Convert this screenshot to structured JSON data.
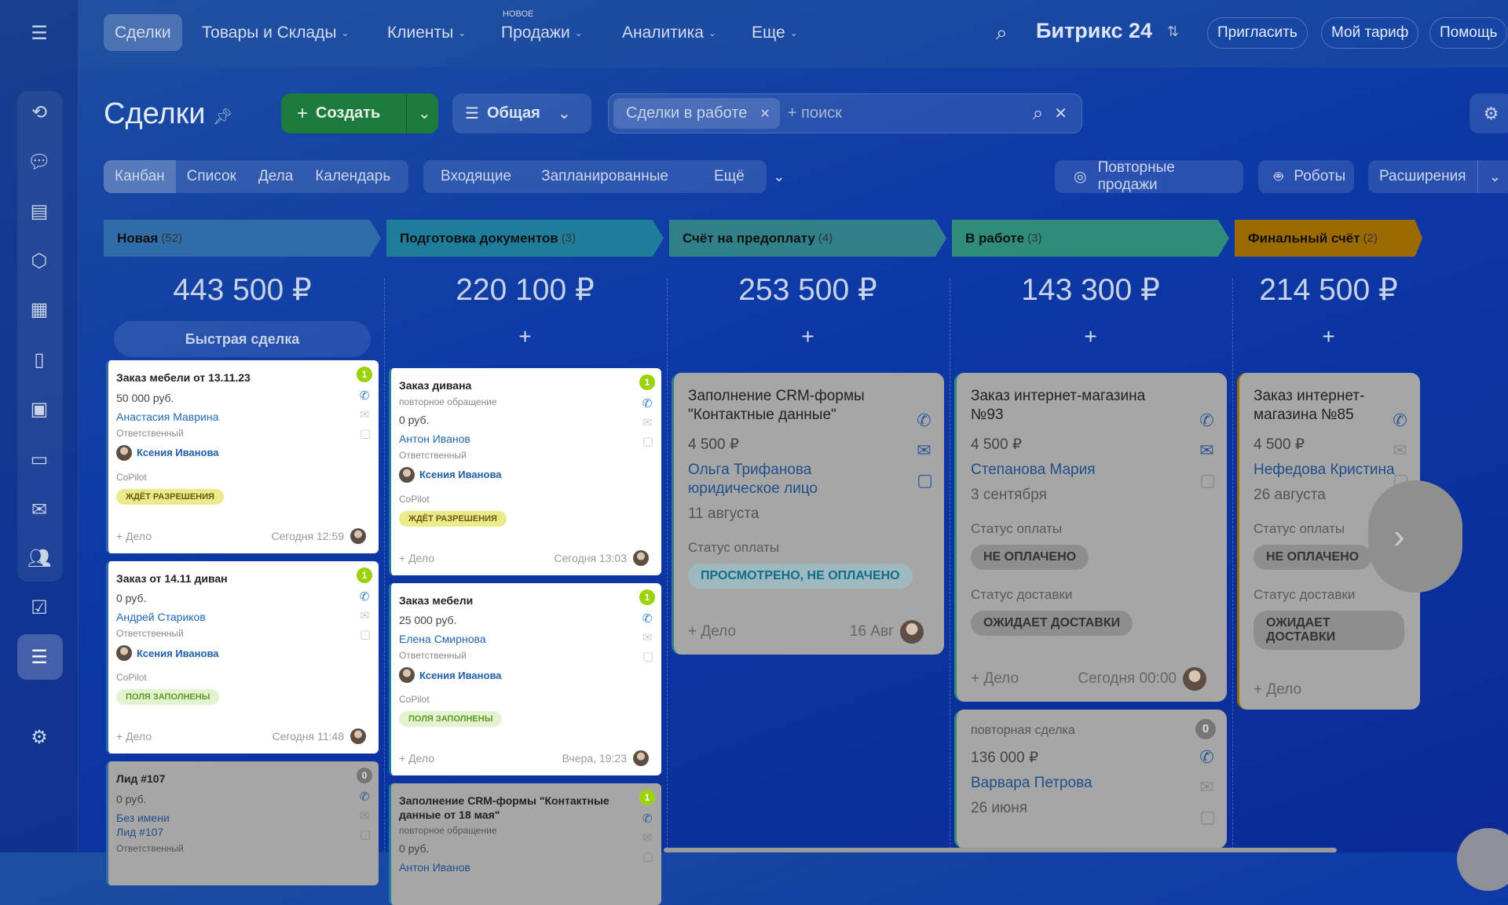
{
  "topnav": {
    "items": [
      {
        "label": "Сделки",
        "active": true
      },
      {
        "label": "Товары и Склады",
        "dropdown": true
      },
      {
        "label": "Клиенты",
        "dropdown": true
      },
      {
        "label": "Продажи",
        "dropdown": true,
        "tag": "НОВОЕ"
      },
      {
        "label": "Аналитика",
        "dropdown": true
      },
      {
        "label": "Еще",
        "dropdown": true
      }
    ],
    "brand": "Битрикс 24",
    "invite": "Пригласить",
    "tariff": "Мой тариф",
    "help": "Помощь"
  },
  "page": {
    "title": "Сделки",
    "create": "Создать",
    "category": "Общая",
    "filter_chip": "Сделки в работе",
    "search_placeholder": "+ поиск"
  },
  "views": {
    "items": [
      "Канбан",
      "Список",
      "Дела",
      "Календарь"
    ],
    "active": "Канбан"
  },
  "counters": {
    "items": [
      "Входящие",
      "Запланированные",
      "Ещё"
    ]
  },
  "right_buttons": {
    "repeat_sales": "Повторные продажи",
    "robots": "Роботы",
    "extensions": "Расширения"
  },
  "colors": {
    "accent_green": "#1f7a3c"
  },
  "board": {
    "quick_deal": "Быстрая сделка",
    "columns": [
      {
        "title": "Новая",
        "count": "(52)",
        "color": "#2f6ca8",
        "sum": "443 500 ₽",
        "cards": [
          {
            "size": "small",
            "title": "Заказ мебели от 13.11.23",
            "amount": "50 000 руб.",
            "contacts": [
              "Анастасия Маврина"
            ],
            "resp_label": "Ответственный",
            "responsible": "Ксения Иванова",
            "copilot": "CoPilot",
            "badge": "ждёт разрешения",
            "badge_type": "b-wait",
            "add": "+ Дело",
            "time": "Сегодня 12:59",
            "counter": "1"
          },
          {
            "size": "small",
            "title": "Заказ от 14.11 диван",
            "amount": "0 руб.",
            "contacts": [
              "Андрей Стариков"
            ],
            "resp_label": "Ответственный",
            "responsible": "Ксения Иванова",
            "copilot": "CoPilot",
            "badge": "поля заполнены",
            "badge_type": "b-done",
            "add": "+ Дело",
            "time": "Сегодня 11:48",
            "counter": "1"
          },
          {
            "size": "small",
            "dim": true,
            "title": "Лид #107",
            "amount": "0 руб.",
            "contacts": [
              "Без имени",
              "Лид #107"
            ],
            "resp_label": "Ответственный",
            "counter": "0"
          }
        ]
      },
      {
        "title": "Подготовка документов",
        "count": "(3)",
        "color": "#1f7d9c",
        "sum": "220 100 ₽",
        "cards": [
          {
            "size": "small",
            "title": "Заказ дивана",
            "subtitle": "повторное обращение",
            "amount": "0 руб.",
            "contacts": [
              "Антон Иванов"
            ],
            "resp_label": "Ответственный",
            "responsible": "Ксения Иванова",
            "copilot": "CoPilot",
            "badge": "ждёт разрешения",
            "badge_type": "b-wait",
            "add": "+ Дело",
            "time": "Сегодня 13:03",
            "counter": "1"
          },
          {
            "size": "small",
            "title": "Заказ мебели",
            "amount": "25 000 руб.",
            "contacts": [
              "Елена Смирнова"
            ],
            "resp_label": "Ответственный",
            "responsible": "Ксения Иванова",
            "copilot": "CoPilot",
            "badge": "поля заполнены",
            "badge_type": "b-done",
            "add": "+ Дело",
            "time": "Вчера, 19:23",
            "counter": "1"
          },
          {
            "size": "small",
            "dim": true,
            "title": "Заполнение CRM-формы \"Контактные данные от 18 мая\"",
            "subtitle": "повторное обращение",
            "amount": "0 руб.",
            "contacts": [
              "Антон Иванов"
            ],
            "counter": "1"
          }
        ]
      },
      {
        "title": "Счёт на предоплату",
        "count": "(4)",
        "color": "#2f8088",
        "sum": "253 500 ₽",
        "cards": [
          {
            "size": "large",
            "dim": true,
            "title": "Заполнение CRM-формы \"Контактные данные\"",
            "amount": "4 500 ₽",
            "contacts": [
              "Ольга Трифанова",
              "юридическое лицо"
            ],
            "date": "11 августа",
            "statuses": [
              {
                "label": "Статус оплаты",
                "value": "Просмотрено, не оплачено",
                "type": "b-seen"
              }
            ],
            "add": "+ Дело",
            "time": "16 Авг",
            "icons_on": true
          }
        ]
      },
      {
        "title": "В работе",
        "count": "(3)",
        "color": "#2e8c78",
        "sum": "143 300 ₽",
        "cards": [
          {
            "size": "large",
            "dim": true,
            "title": "Заказ интернет-магазина №93",
            "amount": "4 500 ₽",
            "contacts": [
              "Степанова Мария"
            ],
            "date": "3 сентября",
            "statuses": [
              {
                "label": "Статус оплаты",
                "value": "Не оплачено",
                "type": "b-grey"
              },
              {
                "label": "Статус доставки",
                "value": "Ожидает доставки",
                "type": "b-grey"
              }
            ],
            "add": "+ Дело",
            "time": "Сегодня 00:00",
            "mail_on": true
          },
          {
            "size": "large",
            "dim": true,
            "subtitle_top": "повторная сделка",
            "amount": "136 000 ₽",
            "contacts": [
              "Варвара Петрова"
            ],
            "date": "26 июня",
            "counter": "0"
          }
        ]
      },
      {
        "title": "Финальный счёт",
        "count": "(2)",
        "color": "#9a6a00",
        "sum": "214 500 ₽",
        "cards": [
          {
            "size": "large",
            "dim": true,
            "title": "Заказ интернет-магазина №85",
            "amount": "4 500 ₽",
            "contacts": [
              "Нефедова Кристина"
            ],
            "date": "26 августа",
            "statuses": [
              {
                "label": "Статус оплаты",
                "value": "Не оплачено",
                "type": "b-grey"
              },
              {
                "label": "Статус доставки",
                "value": "Ожидает доставки",
                "type": "b-grey"
              }
            ],
            "add": "+ Дело"
          }
        ]
      }
    ]
  }
}
